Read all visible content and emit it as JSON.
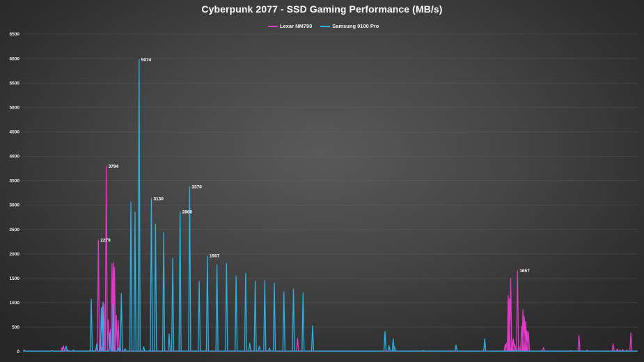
{
  "chart_data": {
    "type": "line",
    "title": "Cyberpunk 2077 - SSD Gaming Performance (MB/s)",
    "xlabel": "",
    "ylabel": "",
    "ylim": [
      0,
      6500
    ],
    "yticks": [
      0,
      500,
      1000,
      1500,
      2000,
      2500,
      3000,
      3500,
      4000,
      4500,
      5000,
      5500,
      6000,
      6500
    ],
    "grid": true,
    "legend_position": "top",
    "colors": {
      "lexar": "#e23ac8",
      "samsung": "#27b3e6",
      "grid": "#6a6a6a",
      "text": "#ffffff"
    },
    "series": [
      {
        "name": "Lexar NM790",
        "color": "#e23ac8",
        "spikes": [
          [
            0.5,
            30
          ],
          [
            5.5,
            10
          ],
          [
            10.5,
            20
          ],
          [
            14.3,
            80
          ],
          [
            14.8,
            120
          ],
          [
            16.5,
            30
          ],
          [
            24.5,
            30
          ],
          [
            26.8,
            80
          ],
          [
            27.6,
            2279
          ],
          [
            28.3,
            150
          ],
          [
            29.2,
            920
          ],
          [
            29.7,
            980
          ],
          [
            30.5,
            3794
          ],
          [
            31.2,
            650
          ],
          [
            32.0,
            450
          ],
          [
            32.6,
            1800
          ],
          [
            33.1,
            1820
          ],
          [
            33.5,
            1720
          ],
          [
            34.2,
            740
          ],
          [
            34.9,
            640
          ],
          [
            35.5,
            100
          ],
          [
            100.5,
            270
          ],
          [
            176.5,
            150
          ],
          [
            177.0,
            170
          ],
          [
            177.6,
            1150
          ],
          [
            178.0,
            1080
          ],
          [
            178.5,
            1500
          ],
          [
            179.0,
            230
          ],
          [
            179.5,
            260
          ],
          [
            180.0,
            150
          ],
          [
            181.0,
            1657
          ],
          [
            181.5,
            120
          ],
          [
            182.5,
            520
          ],
          [
            183.0,
            860
          ],
          [
            183.5,
            720
          ],
          [
            184.0,
            620
          ],
          [
            184.5,
            420
          ],
          [
            185.0,
            400
          ],
          [
            190.5,
            80
          ],
          [
            203.5,
            330
          ],
          [
            206.5,
            30
          ],
          [
            216.0,
            160
          ],
          [
            217.5,
            50
          ],
          [
            218.5,
            30
          ],
          [
            219.5,
            40
          ],
          [
            221.0,
            30
          ],
          [
            222.5,
            380
          ]
        ],
        "labels": [
          [
            27.6,
            2279
          ],
          [
            30.5,
            3794
          ],
          [
            181.0,
            1657
          ]
        ]
      },
      {
        "name": "Samsung 9100 Pro",
        "color": "#27b3e6",
        "spikes": [
          [
            0.5,
            20
          ],
          [
            3.5,
            10
          ],
          [
            7.5,
            10
          ],
          [
            10.5,
            20
          ],
          [
            15.8,
            110
          ],
          [
            18.5,
            30
          ],
          [
            24.5,
            20
          ],
          [
            25.0,
            1070
          ],
          [
            27.0,
            160
          ],
          [
            28.7,
            900
          ],
          [
            29.3,
            1010
          ],
          [
            31.8,
            390
          ],
          [
            33.0,
            960
          ],
          [
            35.0,
            70
          ],
          [
            36.0,
            1190
          ],
          [
            37.4,
            60
          ],
          [
            39.5,
            3060
          ],
          [
            41.0,
            2860
          ],
          [
            42.5,
            5974
          ],
          [
            44.2,
            100
          ],
          [
            46.5,
            30
          ],
          [
            47.0,
            3130
          ],
          [
            48.5,
            2610
          ],
          [
            51.5,
            2430
          ],
          [
            53.5,
            360
          ],
          [
            54.8,
            1910
          ],
          [
            57.5,
            2860
          ],
          [
            61.0,
            3370
          ],
          [
            64.5,
            1440
          ],
          [
            67.5,
            1957
          ],
          [
            71.0,
            1770
          ],
          [
            74.5,
            1800
          ],
          [
            78.0,
            1550
          ],
          [
            81.5,
            1600
          ],
          [
            83.0,
            170
          ],
          [
            85.0,
            1440
          ],
          [
            86.5,
            110
          ],
          [
            88.5,
            1450
          ],
          [
            90.2,
            70
          ],
          [
            92.0,
            1400
          ],
          [
            95.5,
            1220
          ],
          [
            99.0,
            1280
          ],
          [
            102.5,
            1200
          ],
          [
            106.0,
            530
          ],
          [
            132.5,
            410
          ],
          [
            134.0,
            120
          ],
          [
            135.5,
            260
          ],
          [
            136.0,
            100
          ],
          [
            146.5,
            20
          ],
          [
            158.5,
            130
          ],
          [
            169.0,
            260
          ],
          [
            180.5,
            30
          ],
          [
            200.5,
            20
          ]
        ],
        "labels": [
          [
            42.5,
            5974
          ],
          [
            47.0,
            3130
          ],
          [
            57.5,
            2860
          ],
          [
            61.0,
            3370
          ],
          [
            67.5,
            1957
          ]
        ]
      }
    ],
    "x_count": 225
  }
}
